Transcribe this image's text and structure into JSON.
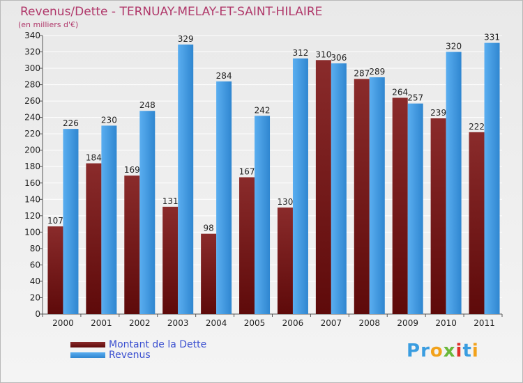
{
  "chart_data": {
    "type": "bar",
    "title": "Revenus/Dette - TERNUAY-MELAY-ET-SAINT-HILAIRE",
    "subtitle": "(en milliers d'€)",
    "categories": [
      "2000",
      "2001",
      "2002",
      "2003",
      "2004",
      "2005",
      "2006",
      "2007",
      "2008",
      "2009",
      "2010",
      "2011"
    ],
    "series": [
      {
        "name": "Montant de la Dette",
        "color": "#7a1c1c",
        "values": [
          107,
          184,
          169,
          131,
          98,
          167,
          130,
          310,
          287,
          264,
          239,
          222
        ]
      },
      {
        "name": "Revenus",
        "color": "#3e9be6",
        "values": [
          226,
          230,
          248,
          329,
          284,
          242,
          312,
          306,
          289,
          257,
          320,
          331
        ]
      }
    ],
    "ylim": [
      0,
      340
    ],
    "yticks": [
      0,
      20,
      40,
      60,
      80,
      100,
      120,
      140,
      160,
      180,
      200,
      220,
      240,
      260,
      280,
      300,
      320,
      340
    ],
    "grid": true,
    "legend_position": "bottom-left"
  },
  "logo": {
    "text": "Proxiti"
  }
}
